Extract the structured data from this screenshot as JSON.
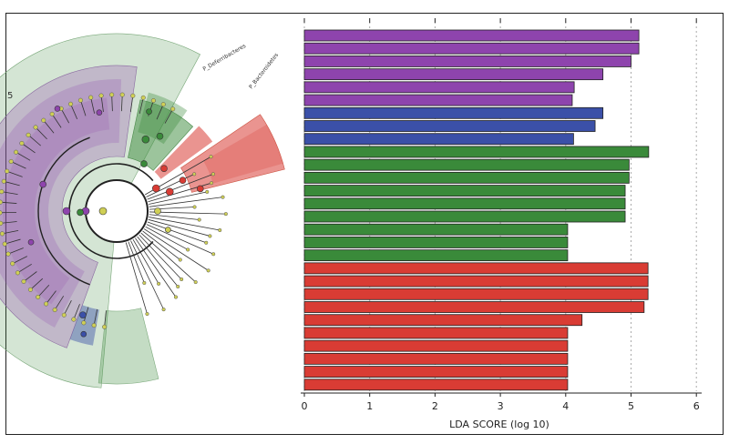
{
  "chart_data": [
    {
      "type": "cladogram",
      "edge_label": "5",
      "clade_labels": [
        "P_Deferribacteres",
        "P_Bacteroidetes"
      ],
      "colors": {
        "purple": "#8e44ad",
        "blue": "#3b50a8",
        "green": "#3a8a3a",
        "red": "#d93c34",
        "node_default": "#cfcf55"
      }
    },
    {
      "type": "bar",
      "orientation": "horizontal",
      "xlabel": "LDA SCORE (log 10)",
      "xlim": [
        0,
        6.2
      ],
      "xticks": [
        "0",
        "1",
        "2",
        "3",
        "4",
        "5",
        "6"
      ],
      "grid": "vertical-dotted",
      "series": [
        {
          "color": "#8e44ad",
          "values": [
            5.12,
            5.12,
            5.0,
            4.57,
            4.13,
            4.1
          ]
        },
        {
          "color": "#3b50a8",
          "values": [
            4.57,
            4.45,
            4.12
          ]
        },
        {
          "color": "#3a8a3a",
          "values": [
            5.27,
            4.97,
            4.97,
            4.91,
            4.91,
            4.91,
            4.03,
            4.03,
            4.03
          ]
        },
        {
          "color": "#d93c34",
          "values": [
            5.26,
            5.26,
            5.26,
            5.2,
            4.25,
            4.03,
            4.03,
            4.03,
            4.03,
            4.03
          ]
        }
      ]
    }
  ]
}
